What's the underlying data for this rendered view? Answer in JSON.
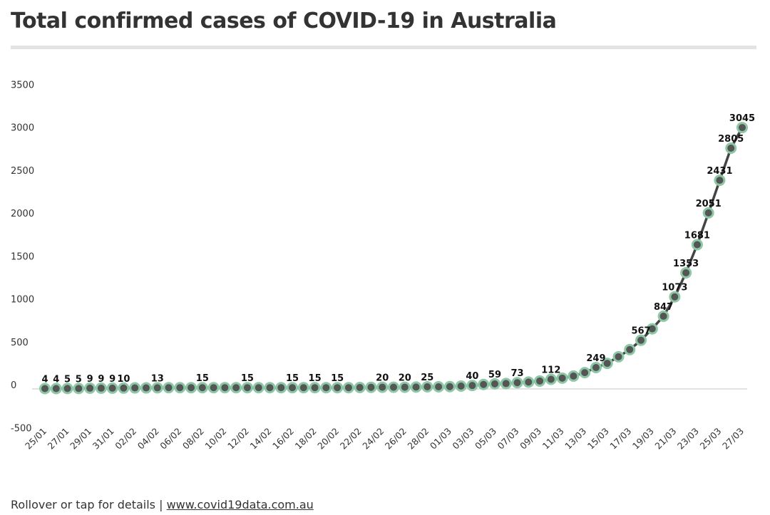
{
  "title": "Total confirmed cases of COVID-19 in Australia",
  "footer": {
    "text": "Rollover or tap for details |",
    "link": "www.covid19data.com.au"
  },
  "chart_data": {
    "type": "line",
    "title": "Total confirmed cases of COVID-19 in Australia",
    "xlabel": "",
    "ylabel": "",
    "ylim": [
      -500,
      3500
    ],
    "yticks": [
      -500,
      0,
      500,
      1000,
      1500,
      2000,
      2500,
      3000,
      3500
    ],
    "grid": false,
    "colors": {
      "line": "#444444",
      "marker_fill": "#555555",
      "marker_stroke": "#8cc7a6"
    },
    "x": [
      "25/01",
      "26/01",
      "27/01",
      "28/01",
      "29/01",
      "30/01",
      "31/01",
      "01/02",
      "02/02",
      "03/02",
      "04/02",
      "05/02",
      "06/02",
      "07/02",
      "08/02",
      "09/02",
      "10/02",
      "11/02",
      "12/02",
      "13/02",
      "14/02",
      "15/02",
      "16/02",
      "17/02",
      "18/02",
      "19/02",
      "20/02",
      "21/02",
      "22/02",
      "23/02",
      "24/02",
      "25/02",
      "26/02",
      "27/02",
      "28/02",
      "29/02",
      "01/03",
      "02/03",
      "03/03",
      "04/03",
      "05/03",
      "06/03",
      "07/03",
      "08/03",
      "09/03",
      "10/03",
      "11/03",
      "12/03",
      "13/03",
      "14/03",
      "15/03",
      "16/03",
      "17/03",
      "18/03",
      "19/03",
      "20/03",
      "21/03",
      "22/03",
      "23/03",
      "24/03",
      "25/03",
      "26/03",
      "27/03"
    ],
    "xticks": [
      "25/01",
      "27/01",
      "29/01",
      "31/01",
      "02/02",
      "04/02",
      "06/02",
      "08/02",
      "10/02",
      "12/02",
      "14/02",
      "16/02",
      "18/02",
      "20/02",
      "22/02",
      "24/02",
      "26/02",
      "28/02",
      "01/03",
      "03/03",
      "05/03",
      "07/03",
      "09/03",
      "11/03",
      "13/03",
      "15/03",
      "17/03",
      "19/03",
      "21/03",
      "23/03",
      "25/03",
      "27/03"
    ],
    "values": [
      4,
      4,
      5,
      5,
      9,
      9,
      9,
      10,
      12,
      12,
      13,
      15,
      15,
      15,
      15,
      15,
      15,
      15,
      15,
      15,
      15,
      15,
      15,
      15,
      15,
      15,
      15,
      15,
      17,
      19,
      20,
      20,
      20,
      22,
      25,
      25,
      27,
      33,
      40,
      52,
      59,
      63,
      73,
      80,
      92,
      112,
      126,
      150,
      190,
      249,
      298,
      375,
      458,
      567,
      700,
      847,
      1073,
      1353,
      1681,
      2051,
      2431,
      2805,
      3045
    ],
    "data_labels": [
      {
        "x": "25/01",
        "label": "4"
      },
      {
        "x": "26/01",
        "label": "4"
      },
      {
        "x": "27/01",
        "label": "5"
      },
      {
        "x": "28/01",
        "label": "5"
      },
      {
        "x": "29/01",
        "label": "9"
      },
      {
        "x": "30/01",
        "label": "9"
      },
      {
        "x": "31/01",
        "label": "9"
      },
      {
        "x": "01/02",
        "label": "10"
      },
      {
        "x": "04/02",
        "label": "13"
      },
      {
        "x": "08/02",
        "label": "15"
      },
      {
        "x": "12/02",
        "label": "15"
      },
      {
        "x": "16/02",
        "label": "15"
      },
      {
        "x": "18/02",
        "label": "15"
      },
      {
        "x": "20/02",
        "label": "15"
      },
      {
        "x": "24/02",
        "label": "20"
      },
      {
        "x": "26/02",
        "label": "20"
      },
      {
        "x": "28/02",
        "label": "25"
      },
      {
        "x": "03/03",
        "label": "40"
      },
      {
        "x": "05/03",
        "label": "59"
      },
      {
        "x": "07/03",
        "label": "73"
      },
      {
        "x": "10/03",
        "label": "112"
      },
      {
        "x": "14/03",
        "label": "249"
      },
      {
        "x": "18/03",
        "label": "567"
      },
      {
        "x": "20/03",
        "label": "847"
      },
      {
        "x": "21/03",
        "label": "1073"
      },
      {
        "x": "22/03",
        "label": "1353"
      },
      {
        "x": "23/03",
        "label": "1681"
      },
      {
        "x": "24/03",
        "label": "2051"
      },
      {
        "x": "25/03",
        "label": "2431"
      },
      {
        "x": "26/03",
        "label": "2805"
      },
      {
        "x": "27/03",
        "label": "3045"
      }
    ]
  }
}
